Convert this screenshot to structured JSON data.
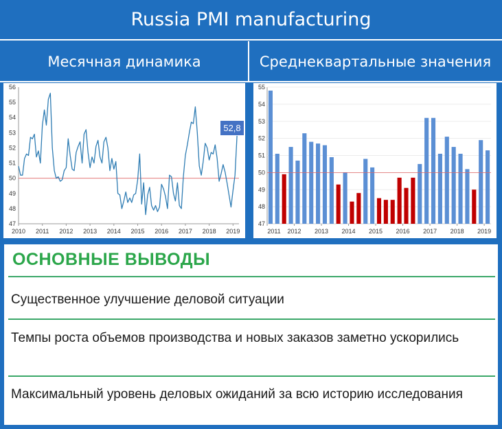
{
  "header": {
    "title": "Russia PMI manufacturing",
    "left_subtitle": "Месячная динамика",
    "right_subtitle": "Среднеквартальные значения"
  },
  "chart_data": [
    {
      "type": "line",
      "ylim": [
        47,
        56
      ],
      "yticks": [
        "47",
        "48",
        "49",
        "50",
        "51",
        "52",
        "53",
        "54",
        "55",
        "56"
      ],
      "xticks": [
        "2010",
        "2011",
        "2012",
        "2013",
        "2014",
        "2015",
        "2016",
        "2017",
        "2018",
        "2019"
      ],
      "xlim": [
        2010.0,
        2019.25
      ],
      "reference_line": 50,
      "colors": {
        "line": "#2e7cb3",
        "reference": "#e06666",
        "label_bg": "#4472c4"
      },
      "last_value_label": "52,8",
      "x": [
        2010.0,
        2010.083,
        2010.167,
        2010.25,
        2010.333,
        2010.417,
        2010.5,
        2010.583,
        2010.667,
        2010.75,
        2010.833,
        2010.917,
        2011.0,
        2011.083,
        2011.167,
        2011.25,
        2011.333,
        2011.417,
        2011.5,
        2011.583,
        2011.667,
        2011.75,
        2011.833,
        2011.917,
        2012.0,
        2012.083,
        2012.167,
        2012.25,
        2012.333,
        2012.417,
        2012.5,
        2012.583,
        2012.667,
        2012.75,
        2012.833,
        2012.917,
        2013.0,
        2013.083,
        2013.167,
        2013.25,
        2013.333,
        2013.417,
        2013.5,
        2013.583,
        2013.667,
        2013.75,
        2013.833,
        2013.917,
        2014.0,
        2014.083,
        2014.167,
        2014.25,
        2014.333,
        2014.417,
        2014.5,
        2014.583,
        2014.667,
        2014.75,
        2014.833,
        2014.917,
        2015.0,
        2015.083,
        2015.167,
        2015.25,
        2015.333,
        2015.417,
        2015.5,
        2015.583,
        2015.667,
        2015.75,
        2015.833,
        2015.917,
        2016.0,
        2016.083,
        2016.167,
        2016.25,
        2016.333,
        2016.417,
        2016.5,
        2016.583,
        2016.667,
        2016.75,
        2016.833,
        2016.917,
        2017.0,
        2017.083,
        2017.167,
        2017.25,
        2017.333,
        2017.417,
        2017.5,
        2017.583,
        2017.667,
        2017.75,
        2017.833,
        2017.917,
        2018.0,
        2018.083,
        2018.167,
        2018.25,
        2018.333,
        2018.417,
        2018.5,
        2018.583,
        2018.667,
        2018.75,
        2018.833,
        2018.917,
        2019.0,
        2019.083,
        2019.167
      ],
      "y": [
        50.8,
        50.2,
        50.2,
        51.3,
        51.6,
        51.5,
        52.7,
        52.6,
        52.9,
        51.4,
        51.8,
        51.0,
        53.5,
        54.5,
        53.5,
        55.2,
        55.6,
        52.0,
        50.5,
        50.0,
        50.1,
        49.8,
        49.9,
        50.5,
        50.7,
        52.6,
        51.5,
        50.6,
        50.5,
        51.7,
        52.1,
        52.4,
        51.0,
        52.9,
        53.2,
        51.7,
        50.7,
        51.4,
        51.0,
        52.1,
        52.5,
        51.4,
        51.0,
        52.4,
        52.7,
        52.0,
        50.5,
        51.3,
        50.6,
        51.1,
        49.0,
        48.9,
        48.0,
        48.5,
        49.1,
        48.4,
        48.7,
        48.4,
        48.9,
        49.0,
        49.9,
        51.6,
        48.3,
        49.7,
        47.6,
        48.9,
        49.4,
        48.2,
        47.9,
        48.2,
        47.8,
        48.1,
        49.6,
        49.3,
        48.8,
        48.0,
        50.2,
        50.1,
        49.0,
        48.5,
        49.7,
        48.2,
        48.0,
        50.1,
        51.5,
        52.2,
        53.0,
        53.7,
        53.6,
        54.7,
        53.0,
        50.8,
        50.2,
        51.1,
        52.3,
        52.0,
        51.2,
        51.7,
        51.6,
        52.2,
        51.3,
        49.8,
        50.3,
        50.9,
        50.4,
        49.7,
        48.9,
        48.1,
        49.2,
        50.2,
        52.8
      ]
    },
    {
      "type": "bar",
      "ylim": [
        47,
        55
      ],
      "yticks": [
        "47",
        "48",
        "49",
        "50",
        "51",
        "52",
        "53",
        "54",
        "55"
      ],
      "xticks": [
        "2011",
        "2012",
        "2013",
        "2014",
        "2015",
        "2016",
        "2017",
        "2018",
        "2019"
      ],
      "reference_line": 50,
      "colors": {
        "above": "#5b8fd4",
        "below": "#c00000",
        "reference": "#e06666"
      },
      "quarters": [
        "2011Q1",
        "2011Q2",
        "2011Q3",
        "2011Q4",
        "2012Q1",
        "2012Q2",
        "2012Q3",
        "2012Q4",
        "2013Q1",
        "2013Q2",
        "2013Q3",
        "2013Q4",
        "2014Q1",
        "2014Q2",
        "2014Q3",
        "2014Q4",
        "2015Q1",
        "2015Q2",
        "2015Q3",
        "2015Q4",
        "2016Q1",
        "2016Q2",
        "2016Q3",
        "2016Q4",
        "2017Q1",
        "2017Q2",
        "2017Q3",
        "2017Q4",
        "2018Q1",
        "2018Q2",
        "2018Q3",
        "2018Q4",
        "2019Q1"
      ],
      "values": [
        54.8,
        51.1,
        49.9,
        51.5,
        50.7,
        52.3,
        51.8,
        51.7,
        51.6,
        50.9,
        49.3,
        50.0,
        48.3,
        48.8,
        50.8,
        50.3,
        48.5,
        48.4,
        48.4,
        49.7,
        49.1,
        49.7,
        50.5,
        53.2,
        53.2,
        51.1,
        52.1,
        51.5,
        51.1,
        50.2,
        49.0,
        51.9,
        51.3
      ]
    }
  ],
  "conclusions": {
    "title": "ОСНОВНЫЕ ВЫВОДЫ",
    "items": [
      "Существенное улучшение деловой ситуации",
      "Темпы роста объемов производства и новых заказов заметно ускорились",
      "Максимальный уровень деловых ожиданий за всю историю исследования"
    ],
    "colors": {
      "title": "#2ba64a",
      "separator": "#3aa768"
    }
  }
}
